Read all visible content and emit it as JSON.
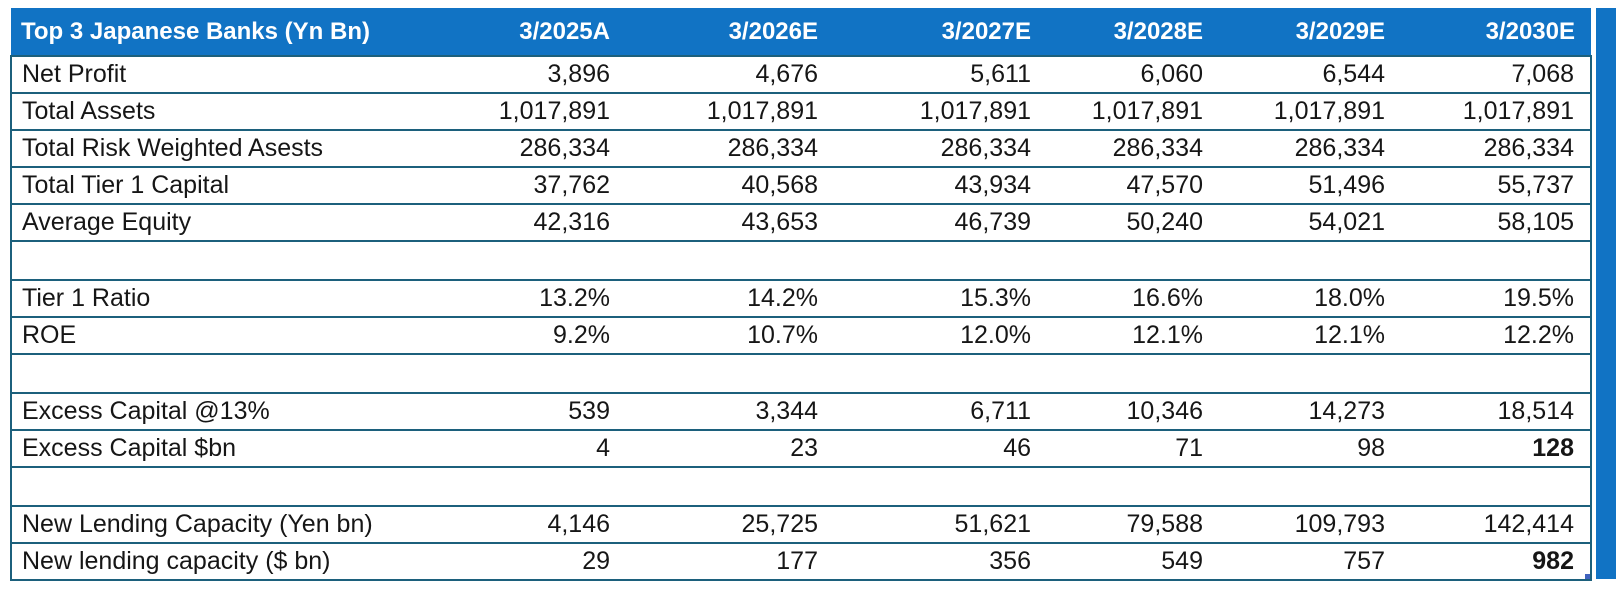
{
  "table": {
    "colors": {
      "header_bg": "#1173c4",
      "grid_border": "#1c607c",
      "fill_handle": "#4062be"
    },
    "header": {
      "label": "Top 3 Japanese Banks (Yn Bn)",
      "columns": [
        "3/2025A",
        "3/2026E",
        "3/2027E",
        "3/2028E",
        "3/2029E",
        "3/2030E"
      ]
    },
    "rows": [
      {
        "label": "Net Profit",
        "values": [
          "3,896",
          "4,676",
          "5,611",
          "6,060",
          "6,544",
          "7,068"
        ]
      },
      {
        "label": "Total Assets",
        "values": [
          "1,017,891",
          "1,017,891",
          "1,017,891",
          "1,017,891",
          "1,017,891",
          "1,017,891"
        ]
      },
      {
        "label": "Total Risk Weighted Asests",
        "values": [
          "286,334",
          "286,334",
          "286,334",
          "286,334",
          "286,334",
          "286,334"
        ]
      },
      {
        "label": "Total Tier 1 Capital",
        "values": [
          "37,762",
          "40,568",
          "43,934",
          "47,570",
          "51,496",
          "55,737"
        ]
      },
      {
        "label": "Average Equity",
        "values": [
          "42,316",
          "43,653",
          "46,739",
          "50,240",
          "54,021",
          "58,105"
        ]
      },
      {
        "blank": true
      },
      {
        "label": "Tier 1 Ratio",
        "values": [
          "13.2%",
          "14.2%",
          "15.3%",
          "16.6%",
          "18.0%",
          "19.5%"
        ]
      },
      {
        "label": "ROE",
        "values": [
          "9.2%",
          "10.7%",
          "12.0%",
          "12.1%",
          "12.1%",
          "12.2%"
        ]
      },
      {
        "blank": true
      },
      {
        "label": "Excess Capital @13%",
        "values": [
          "539",
          "3,344",
          "6,711",
          "10,346",
          "14,273",
          "18,514"
        ]
      },
      {
        "label": "Excess Capital $bn",
        "values": [
          "4",
          "23",
          "46",
          "71",
          "98",
          "128"
        ],
        "bold_cols": [
          5
        ]
      },
      {
        "blank": true
      },
      {
        "label": "New Lending Capacity (Yen bn)",
        "values": [
          "4,146",
          "25,725",
          "51,621",
          "79,588",
          "109,793",
          "142,414"
        ]
      },
      {
        "label": "New lending capacity ($ bn)",
        "values": [
          "29",
          "177",
          "356",
          "549",
          "757",
          "982"
        ],
        "bold_cols": [
          5
        ],
        "fill_handle": true
      }
    ]
  }
}
